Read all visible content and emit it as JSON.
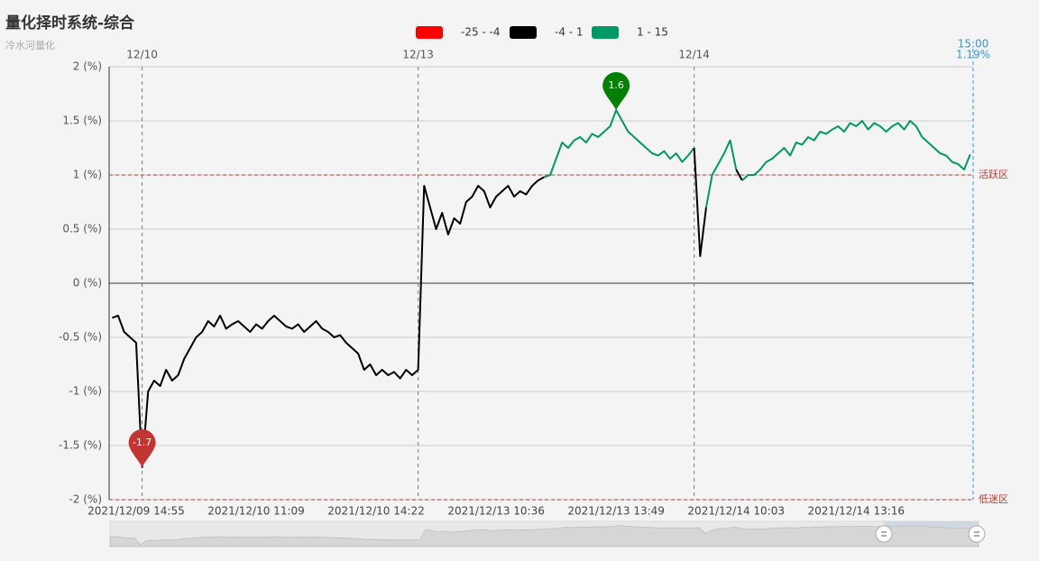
{
  "chart_data": {
    "type": "line",
    "title": "量化择时系统-综合",
    "subtitle": "冷水河量化",
    "categories": [
      null,
      null,
      null,
      null,
      "2021/12/09 14:55",
      null,
      null,
      null,
      null,
      null,
      null,
      null,
      null,
      null,
      null,
      null,
      null,
      null,
      null,
      null,
      null,
      null,
      null,
      null,
      "2021/12/10 11:09",
      null,
      null,
      null,
      null,
      null,
      null,
      null,
      null,
      null,
      null,
      null,
      null,
      null,
      null,
      null,
      null,
      null,
      null,
      null,
      "2021/12/10 14:22",
      null,
      null,
      null,
      null,
      null,
      null,
      null,
      null,
      null,
      null,
      null,
      null,
      null,
      null,
      null,
      null,
      null,
      null,
      null,
      "2021/12/13 10:36",
      null,
      null,
      null,
      null,
      null,
      null,
      null,
      null,
      null,
      null,
      null,
      null,
      null,
      null,
      null,
      null,
      null,
      null,
      null,
      "2021/12/13 13:49",
      null,
      null,
      null,
      null,
      null,
      null,
      null,
      null,
      null,
      null,
      null,
      null,
      null,
      null,
      null,
      null,
      null,
      null,
      null,
      "2021/12/14 10:03",
      null,
      null,
      null,
      null,
      null,
      null,
      null,
      null,
      null,
      null,
      null,
      null,
      null,
      null,
      null,
      null,
      null,
      null,
      null,
      "2021/12/14 13:16",
      null,
      null,
      null,
      null,
      null,
      null,
      null,
      null,
      null,
      null,
      null,
      null,
      null,
      null,
      null,
      null,
      null,
      null,
      null
    ],
    "values": [
      -0.32,
      -0.3,
      -0.45,
      -0.5,
      -0.55,
      -1.7,
      -1.0,
      -0.9,
      -0.95,
      -0.8,
      -0.9,
      -0.85,
      -0.7,
      -0.6,
      -0.5,
      -0.45,
      -0.35,
      -0.4,
      -0.3,
      -0.42,
      -0.38,
      -0.35,
      -0.4,
      -0.45,
      -0.38,
      -0.42,
      -0.35,
      -0.3,
      -0.35,
      -0.4,
      -0.42,
      -0.38,
      -0.45,
      -0.4,
      -0.35,
      -0.42,
      -0.45,
      -0.5,
      -0.48,
      -0.55,
      -0.6,
      -0.65,
      -0.8,
      -0.75,
      -0.85,
      -0.8,
      -0.85,
      -0.82,
      -0.88,
      -0.8,
      -0.85,
      -0.8,
      0.9,
      0.7,
      0.5,
      0.65,
      0.45,
      0.6,
      0.55,
      0.75,
      0.8,
      0.9,
      0.85,
      0.7,
      0.8,
      0.85,
      0.9,
      0.8,
      0.85,
      0.82,
      0.9,
      0.95,
      0.98,
      1.0,
      1.15,
      1.3,
      1.25,
      1.32,
      1.35,
      1.3,
      1.38,
      1.35,
      1.4,
      1.45,
      1.6,
      1.5,
      1.4,
      1.35,
      1.3,
      1.25,
      1.2,
      1.18,
      1.22,
      1.15,
      1.2,
      1.12,
      1.18,
      1.25,
      0.25,
      0.7,
      1.0,
      1.1,
      1.2,
      1.32,
      1.05,
      0.95,
      1.0,
      1.0,
      1.05,
      1.12,
      1.15,
      1.2,
      1.25,
      1.18,
      1.3,
      1.28,
      1.35,
      1.32,
      1.4,
      1.38,
      1.42,
      1.45,
      1.4,
      1.48,
      1.45,
      1.5,
      1.42,
      1.48,
      1.45,
      1.4,
      1.45,
      1.48,
      1.42,
      1.5,
      1.45,
      1.35,
      1.3,
      1.25,
      1.2,
      1.18,
      1.12,
      1.1,
      1.05,
      1.19
    ],
    "ylim": [
      -2,
      2
    ],
    "yticks": [
      {
        "value": -2,
        "label": "-2 (%)"
      },
      {
        "value": -1.5,
        "label": "-1.5 (%)"
      },
      {
        "value": -1,
        "label": "-1 (%)"
      },
      {
        "value": -0.5,
        "label": "-0.5 (%)"
      },
      {
        "value": 0,
        "label": "0 (%)"
      },
      {
        "value": 0.5,
        "label": "0.5 (%)"
      },
      {
        "value": 1,
        "label": "1 (%)"
      },
      {
        "value": 1.5,
        "label": "1.5 (%)"
      },
      {
        "value": 2,
        "label": "2 (%)"
      }
    ],
    "grid": true,
    "pieces": [
      {
        "label": "-25 - -4",
        "min": -25,
        "max": -4,
        "color": "#ff0000"
      },
      {
        "label": "-4 - 1",
        "min": -4,
        "max": 1,
        "color": "#000000"
      },
      {
        "label": "1 - 15",
        "min": 1,
        "max": 15,
        "color": "#009966"
      }
    ],
    "max_pin_color": "#008000",
    "min_pin_color": "#c23531",
    "mark_lines": [
      {
        "value": 1,
        "label": "活跃区"
      },
      {
        "value": -2,
        "label": "低迷区"
      }
    ],
    "date_lines": [
      {
        "label": "12/10",
        "point": 5
      },
      {
        "label": "12/13",
        "point": 51
      },
      {
        "label": "12/14",
        "point": 97
      }
    ],
    "pointer": {
      "time": "15:00",
      "label": "1.19%"
    }
  }
}
